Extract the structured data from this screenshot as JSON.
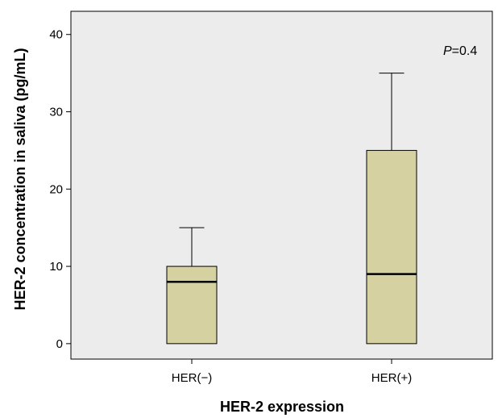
{
  "chart_data": {
    "type": "box",
    "title": "",
    "xlabel": "HER-2 expression",
    "ylabel": "HER-2 concentration in saliva (pg/mL)",
    "ylim": [
      -2,
      43
    ],
    "yticks": [
      0,
      10,
      20,
      30,
      40
    ],
    "ytick_labels": [
      "0",
      "10",
      "20",
      "30",
      "40"
    ],
    "grid": false,
    "categories": [
      "HER(−)",
      "HER(+)"
    ],
    "boxes": [
      {
        "category": "HER(−)",
        "whisker_low": 0,
        "q1": 0,
        "median": 8,
        "q3": 10,
        "whisker_high": 15
      },
      {
        "category": "HER(+)",
        "whisker_low": 0,
        "q1": 0,
        "median": 9,
        "q3": 25,
        "whisker_high": 35
      }
    ],
    "annotation": {
      "p_label": "P",
      "p_value": "=0.4"
    },
    "colors": {
      "plot_background": "#ececec",
      "box_fill": "#d6d1a0",
      "stroke": "#000000"
    }
  }
}
